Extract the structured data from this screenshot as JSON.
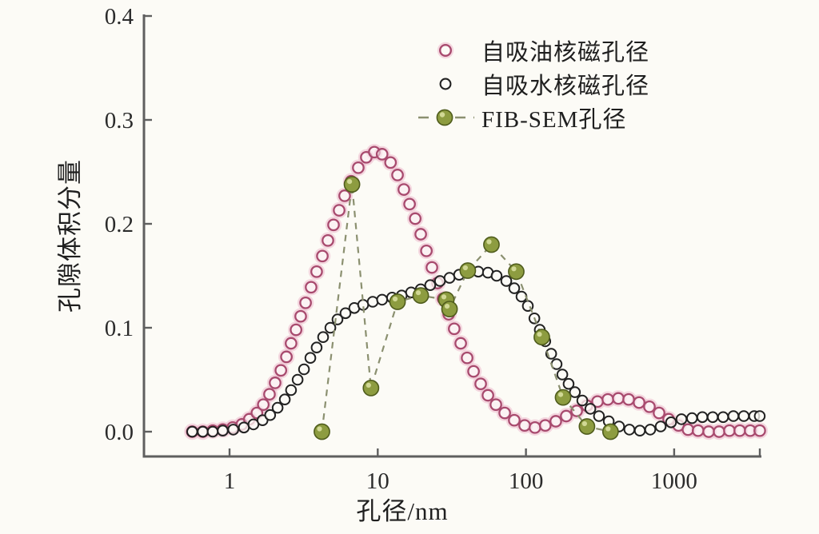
{
  "chart_data": {
    "type": "scatter",
    "title": "",
    "xlabel": "孔径/nm",
    "ylabel": "孔隙体积分量",
    "x_scale": "log",
    "x_ticks": [
      1,
      10,
      100,
      1000
    ],
    "x_tick_labels": [
      "1",
      "10",
      "100",
      "1000"
    ],
    "x_range": [
      0.27,
      3800
    ],
    "y_ticks": [
      0.0,
      0.1,
      0.2,
      0.3,
      0.4
    ],
    "y_tick_labels": [
      "0.0",
      "0.1",
      "0.2",
      "0.3",
      "0.4"
    ],
    "y_range": [
      -0.024,
      0.402
    ],
    "grid": false,
    "legend_position": "top-right-inside",
    "axis_color": "#5f5f5f",
    "tick_label_color": "#2b2b2b",
    "series": [
      {
        "name": "自吸油核磁孔径",
        "marker": "open-circle",
        "color": "#a84a6e",
        "halo_color": "#edb9cc",
        "points": [
          [
            0.56,
            0.0
          ],
          [
            0.66,
            0.0
          ],
          [
            0.77,
            0.001
          ],
          [
            0.9,
            0.002
          ],
          [
            1.05,
            0.004
          ],
          [
            1.21,
            0.007
          ],
          [
            1.36,
            0.012
          ],
          [
            1.53,
            0.018
          ],
          [
            1.69,
            0.026
          ],
          [
            1.86,
            0.036
          ],
          [
            2.03,
            0.047
          ],
          [
            2.22,
            0.059
          ],
          [
            2.42,
            0.072
          ],
          [
            2.6,
            0.085
          ],
          [
            2.81,
            0.098
          ],
          [
            3.02,
            0.111
          ],
          [
            3.26,
            0.124
          ],
          [
            3.55,
            0.139
          ],
          [
            3.87,
            0.154
          ],
          [
            4.23,
            0.169
          ],
          [
            4.61,
            0.184
          ],
          [
            5.03,
            0.199
          ],
          [
            5.49,
            0.213
          ],
          [
            5.98,
            0.227
          ],
          [
            6.61,
            0.241
          ],
          [
            7.39,
            0.254
          ],
          [
            8.37,
            0.264
          ],
          [
            9.48,
            0.269
          ],
          [
            10.7,
            0.267
          ],
          [
            12.2,
            0.259
          ],
          [
            13.6,
            0.247
          ],
          [
            15.0,
            0.233
          ],
          [
            16.4,
            0.219
          ],
          [
            17.9,
            0.205
          ],
          [
            19.5,
            0.19
          ],
          [
            21.3,
            0.174
          ],
          [
            23.2,
            0.158
          ],
          [
            25.3,
            0.143
          ],
          [
            27.6,
            0.128
          ],
          [
            30.1,
            0.113
          ],
          [
            32.8,
            0.099
          ],
          [
            36.3,
            0.085
          ],
          [
            40.1,
            0.071
          ],
          [
            44.3,
            0.058
          ],
          [
            49.5,
            0.046
          ],
          [
            55.4,
            0.035
          ],
          [
            62.7,
            0.026
          ],
          [
            71.9,
            0.018
          ],
          [
            83.4,
            0.011
          ],
          [
            98.0,
            0.006
          ],
          [
            115,
            0.004
          ],
          [
            135,
            0.006
          ],
          [
            159,
            0.01
          ],
          [
            187,
            0.015
          ],
          [
            220,
            0.02
          ],
          [
            258,
            0.025
          ],
          [
            304,
            0.029
          ],
          [
            357,
            0.031
          ],
          [
            420,
            0.032
          ],
          [
            493,
            0.031
          ],
          [
            580,
            0.028
          ],
          [
            681,
            0.024
          ],
          [
            791,
            0.018
          ],
          [
            918,
            0.012
          ],
          [
            1070,
            0.006
          ],
          [
            1240,
            0.002
          ],
          [
            1450,
            0.001
          ],
          [
            1710,
            0.0
          ],
          [
            2010,
            0.0
          ],
          [
            2360,
            0.001
          ],
          [
            2770,
            0.001
          ],
          [
            3260,
            0.001
          ],
          [
            3780,
            0.001
          ]
        ]
      },
      {
        "name": "自吸水核磁孔径",
        "marker": "open-circle",
        "color": "#222222",
        "halo_color": "none",
        "points": [
          [
            0.56,
            0.0
          ],
          [
            0.66,
            0.0
          ],
          [
            0.77,
            0.0
          ],
          [
            0.9,
            0.001
          ],
          [
            1.06,
            0.002
          ],
          [
            1.25,
            0.004
          ],
          [
            1.45,
            0.007
          ],
          [
            1.67,
            0.011
          ],
          [
            1.88,
            0.016
          ],
          [
            2.11,
            0.023
          ],
          [
            2.36,
            0.031
          ],
          [
            2.6,
            0.04
          ],
          [
            2.88,
            0.05
          ],
          [
            3.18,
            0.06
          ],
          [
            3.51,
            0.071
          ],
          [
            3.87,
            0.081
          ],
          [
            4.28,
            0.091
          ],
          [
            4.79,
            0.1
          ],
          [
            5.35,
            0.108
          ],
          [
            6.06,
            0.114
          ],
          [
            6.95,
            0.119
          ],
          [
            7.97,
            0.122
          ],
          [
            9.25,
            0.125
          ],
          [
            10.7,
            0.127
          ],
          [
            12.5,
            0.129
          ],
          [
            14.5,
            0.131
          ],
          [
            16.8,
            0.134
          ],
          [
            19.5,
            0.137
          ],
          [
            22.6,
            0.141
          ],
          [
            26.3,
            0.145
          ],
          [
            30.5,
            0.148
          ],
          [
            35.4,
            0.151
          ],
          [
            41.1,
            0.153
          ],
          [
            47.7,
            0.154
          ],
          [
            55.4,
            0.153
          ],
          [
            63.4,
            0.15
          ],
          [
            73.7,
            0.145
          ],
          [
            83.4,
            0.138
          ],
          [
            93.3,
            0.13
          ],
          [
            103,
            0.121
          ],
          [
            114,
            0.109
          ],
          [
            124,
            0.098
          ],
          [
            135,
            0.087
          ],
          [
            148,
            0.075
          ],
          [
            161,
            0.065
          ],
          [
            176,
            0.055
          ],
          [
            194,
            0.046
          ],
          [
            214,
            0.038
          ],
          [
            240,
            0.03
          ],
          [
            272,
            0.022
          ],
          [
            311,
            0.015
          ],
          [
            362,
            0.01
          ],
          [
            425,
            0.005
          ],
          [
            499,
            0.002
          ],
          [
            587,
            0.001
          ],
          [
            690,
            0.002
          ],
          [
            811,
            0.005
          ],
          [
            953,
            0.009
          ],
          [
            1120,
            0.012
          ],
          [
            1320,
            0.013
          ],
          [
            1550,
            0.014
          ],
          [
            1820,
            0.014
          ],
          [
            2140,
            0.014
          ],
          [
            2510,
            0.015
          ],
          [
            2950,
            0.015
          ],
          [
            3470,
            0.015
          ],
          [
            3780,
            0.015
          ]
        ]
      },
      {
        "name": "FIB-SEM孔径",
        "marker": "filled-circle",
        "color": "#8d9c40",
        "edge_color": "#4f5c1c",
        "highlight_color": "#dde3a4",
        "line_color": "#8b9070",
        "line_style": "dashed",
        "points": [
          [
            4.2,
            0.0
          ],
          [
            6.7,
            0.238
          ],
          [
            9.0,
            0.042
          ],
          [
            13.6,
            0.125
          ],
          [
            19.5,
            0.131
          ],
          [
            29.0,
            0.127
          ],
          [
            30.5,
            0.118
          ],
          [
            40.5,
            0.155
          ],
          [
            58.5,
            0.18
          ],
          [
            86,
            0.154
          ],
          [
            128,
            0.091
          ],
          [
            178,
            0.033
          ],
          [
            258,
            0.005
          ],
          [
            372,
            0.0
          ]
        ]
      }
    ]
  }
}
